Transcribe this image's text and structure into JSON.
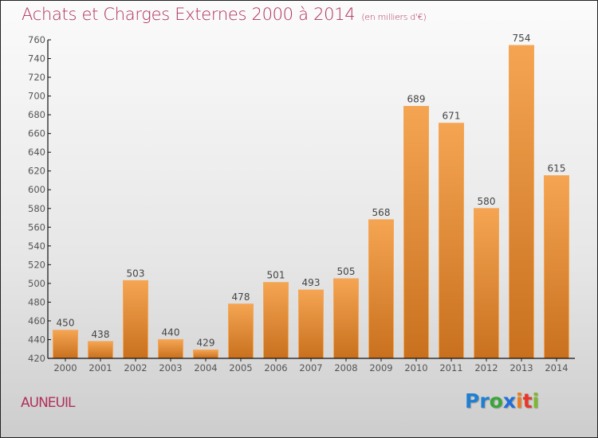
{
  "title": "Achats et Charges Externes 2000 à 2014",
  "subtitle": "(en milliers d'€)",
  "city": "AUNEUIL",
  "logo": {
    "letters": [
      {
        "ch": "P",
        "color": "#1f7fd1"
      },
      {
        "ch": "r",
        "color": "#1f7fd1"
      },
      {
        "ch": "o",
        "color": "#3aa63a"
      },
      {
        "ch": "x",
        "color": "#1f6fd8"
      },
      {
        "ch": "i",
        "color": "#f07a18"
      },
      {
        "ch": "t",
        "color": "#e8362a"
      },
      {
        "ch": "i",
        "color": "#7cba2a"
      }
    ]
  },
  "colors": {
    "title": "#b0305a",
    "bar_top": "#f5a552",
    "bar_bottom": "#c8701e"
  },
  "chart_data": {
    "type": "bar",
    "title": "Achats et Charges Externes 2000 à 2014 (en milliers d'€)",
    "xlabel": "",
    "ylabel": "",
    "categories": [
      "2000",
      "2001",
      "2002",
      "2003",
      "2004",
      "2005",
      "2006",
      "2007",
      "2008",
      "2009",
      "2010",
      "2011",
      "2012",
      "2013",
      "2014"
    ],
    "values": [
      450,
      438,
      503,
      440,
      429,
      478,
      501,
      493,
      505,
      568,
      689,
      671,
      580,
      754,
      615
    ],
    "ylim": [
      420,
      760
    ],
    "yticks": [
      420,
      440,
      460,
      480,
      500,
      520,
      540,
      560,
      580,
      600,
      620,
      640,
      660,
      680,
      700,
      720,
      740,
      760
    ],
    "grid": false,
    "legend": "none"
  }
}
